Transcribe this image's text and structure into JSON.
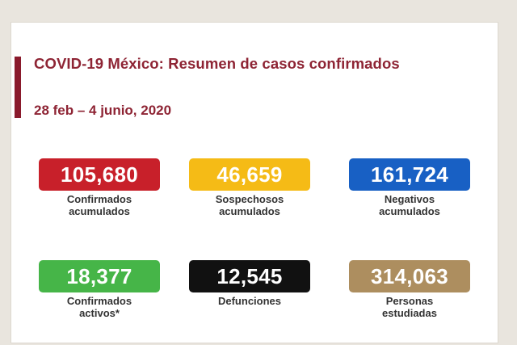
{
  "title": "COVID-19 México: Resumen de casos confirmados",
  "date_range": "28 feb – 4 junio, 2020",
  "stats": [
    {
      "value": "105,680",
      "label_line1": "Confirmados",
      "label_line2": "acumulados",
      "color": "#c8202a"
    },
    {
      "value": "46,659",
      "label_line1": "Sospechosos",
      "label_line2": "acumulados",
      "color": "#f5bb16"
    },
    {
      "value": "161,724",
      "label_line1": "Negativos",
      "label_line2": "acumulados",
      "color": "#1860c4"
    },
    {
      "value": "18,377",
      "label_line1": "Confirmados",
      "label_line2": "activos*",
      "color": "#46b548"
    },
    {
      "value": "12,545",
      "label_line1": "Defunciones",
      "label_line2": "",
      "color": "#111111"
    },
    {
      "value": "314,063",
      "label_line1": "Personas",
      "label_line2": "estudiadas",
      "color": "#ad8e5f"
    }
  ]
}
